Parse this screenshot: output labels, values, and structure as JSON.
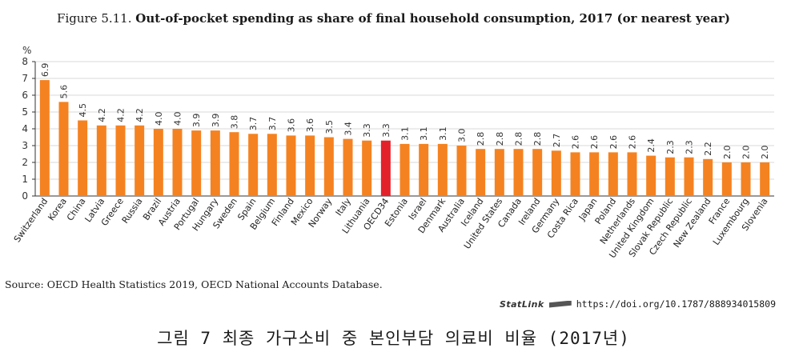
{
  "header": {
    "figure_number": "Figure 5.11.",
    "figure_title": "Out-of-pocket spending as share of final household consumption, 2017 (or nearest year)"
  },
  "chart_data": {
    "type": "bar",
    "ylabel": "%",
    "ylim": [
      0,
      8
    ],
    "yticks": [
      0,
      1,
      2,
      3,
      4,
      5,
      6,
      7,
      8
    ],
    "grid": true,
    "categories": [
      "Switzerland",
      "Korea",
      "China",
      "Latvia",
      "Greece",
      "Russia",
      "Brazil",
      "Austria",
      "Portugal",
      "Hungary",
      "Sweden",
      "Spain",
      "Belgium",
      "Finland",
      "Mexico",
      "Norway",
      "Italy",
      "Lithuania",
      "OECD34",
      "Estonia",
      "Israel",
      "Denmark",
      "Australia",
      "Iceland",
      "United States",
      "Canada",
      "Ireland",
      "Germany",
      "Costa Rica",
      "Japan",
      "Poland",
      "Netherlands",
      "United Kingdom",
      "Slovak Republic",
      "Czech Republic",
      "New Zealand",
      "France",
      "Luxembourg",
      "Slovenia"
    ],
    "values": [
      6.9,
      5.6,
      4.5,
      4.2,
      4.2,
      4.2,
      4.0,
      4.0,
      3.9,
      3.9,
      3.8,
      3.7,
      3.7,
      3.6,
      3.6,
      3.5,
      3.4,
      3.3,
      3.3,
      3.1,
      3.1,
      3.1,
      3.0,
      2.8,
      2.8,
      2.8,
      2.8,
      2.7,
      2.6,
      2.6,
      2.6,
      2.6,
      2.4,
      2.3,
      2.3,
      2.2,
      2.0,
      2.0,
      2.0
    ],
    "data_labels": [
      "6.9",
      "5.6",
      "4.5",
      "4.2",
      "4.2",
      "4.2",
      "4.0",
      "4.0",
      "3.9",
      "3.9",
      "3.8",
      "3.7",
      "3.7",
      "3.6",
      "3.6",
      "3.5",
      "3.4",
      "3.3",
      "3.3",
      "3.1",
      "3.1",
      "3.1",
      "3.0",
      "2.8",
      "2.8",
      "2.8",
      "2.8",
      "2.7",
      "2.6",
      "2.6",
      "2.6",
      "2.6",
      "2.4",
      "2.3",
      "2.3",
      "2.2",
      "2.0",
      "2.0",
      "2.0"
    ],
    "highlight_category": "OECD34",
    "colors": {
      "bar": "#f58220",
      "highlight": "#e3212b",
      "grid": "#d9d9d9",
      "axis": "#333333"
    }
  },
  "footer": {
    "source": "Source: OECD Health Statistics 2019, OECD National Accounts Database.",
    "statlink_label": "StatLink",
    "statlink_url": "https://doi.org/10.1787/888934015809"
  },
  "caption": {
    "text": "그림 7 최종 가구소비 중 본인부담 의료비 비율 (2017년)"
  }
}
